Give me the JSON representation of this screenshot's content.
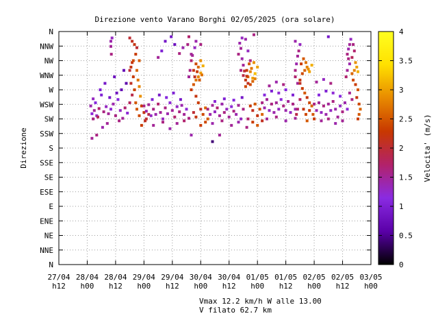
{
  "chart_data": {
    "type": "scatter",
    "title": "Direzione vento Varano Borghi 02/05/2025 (ora solare)",
    "ylabel": "Direzione",
    "colorbar_label": "Velocita' (m/s)",
    "x_ticks": [
      {
        "l1": "27/04",
        "l2": "h12"
      },
      {
        "l1": "28/04",
        "l2": "h00"
      },
      {
        "l1": "28/04",
        "l2": "h12"
      },
      {
        "l1": "29/04",
        "l2": "h00"
      },
      {
        "l1": "29/04",
        "l2": "h12"
      },
      {
        "l1": "30/04",
        "l2": "h00"
      },
      {
        "l1": "30/04",
        "l2": "h12"
      },
      {
        "l1": "01/05",
        "l2": "h00"
      },
      {
        "l1": "01/05",
        "l2": "h12"
      },
      {
        "l1": "02/05",
        "l2": "h00"
      },
      {
        "l1": "02/05",
        "l2": "h12"
      },
      {
        "l1": "03/05",
        "l2": "h00"
      }
    ],
    "y_ticks": [
      "N",
      "NNE",
      "NE",
      "ENE",
      "E",
      "ESE",
      "SE",
      "SSE",
      "S",
      "SSW",
      "SW",
      "WSW",
      "W",
      "WNW",
      "NW",
      "NNW",
      "N"
    ],
    "colorbar_ticks": [
      "0",
      "0.5",
      "1",
      "1.5",
      "2",
      "2.5",
      "3",
      "3.5",
      "4"
    ],
    "colorbar_range": [
      0,
      4
    ],
    "x_range_hours": [
      0,
      132
    ],
    "grid": true,
    "colors": {
      "scale": [
        "#000000",
        "#5a00a8",
        "#8a2be2",
        "#b2226a",
        "#c83800",
        "#e88a00",
        "#ffe000",
        "#ffff20"
      ]
    },
    "points": [
      [
        14.5,
        225,
        1.6
      ],
      [
        14,
        233,
        1.2
      ],
      [
        15,
        238,
        1.5
      ],
      [
        16,
        230,
        1.3
      ],
      [
        13.5,
        245,
        1.4
      ],
      [
        17,
        241,
        1.7
      ],
      [
        15.5,
        250,
        1.1
      ],
      [
        14.5,
        256,
        1.3
      ],
      [
        18,
        262,
        1.0
      ],
      [
        16.5,
        228,
        1.8
      ],
      [
        19,
        236,
        1.6
      ],
      [
        20,
        244,
        1.3
      ],
      [
        21,
        233,
        1.5
      ],
      [
        22,
        240,
        1.2
      ],
      [
        23,
        248,
        1.4
      ],
      [
        24,
        230,
        1.6
      ],
      [
        25,
        255,
        1.1
      ],
      [
        26,
        238,
        1.3
      ],
      [
        27,
        226,
        1.5
      ],
      [
        28,
        242,
        1.7
      ],
      [
        29,
        234,
        1.2
      ],
      [
        21.5,
        258,
        0.9
      ],
      [
        24.5,
        265,
        0.8
      ],
      [
        26.5,
        270,
        0.7
      ],
      [
        28.5,
        280,
        0.6
      ],
      [
        17.5,
        270,
        1.0
      ],
      [
        19.5,
        280,
        0.9
      ],
      [
        23.5,
        290,
        0.8
      ],
      [
        27.5,
        300,
        0.7
      ],
      [
        14,
        195,
        1.5
      ],
      [
        16,
        200,
        1.6
      ],
      [
        18.5,
        212,
        1.4
      ],
      [
        20.5,
        218,
        1.5
      ],
      [
        25.5,
        222,
        1.6
      ],
      [
        22,
        345,
        1.4
      ],
      [
        22.5,
        350,
        1.3
      ],
      [
        22,
        337,
        1.5
      ],
      [
        22.2,
        325,
        1.6
      ],
      [
        30,
        300,
        2.0
      ],
      [
        30.5,
        280,
        2.1
      ],
      [
        31,
        262,
        1.9
      ],
      [
        30,
        250,
        1.8
      ],
      [
        31,
        312,
        2.2
      ],
      [
        31.5,
        290,
        2.3
      ],
      [
        32,
        270,
        2.4
      ],
      [
        32.5,
        250,
        2.5
      ],
      [
        33,
        300,
        2.6
      ],
      [
        33.5,
        285,
        2.7
      ],
      [
        34,
        275,
        2.8
      ],
      [
        34.5,
        260,
        2.9
      ],
      [
        33,
        240,
        2.5
      ],
      [
        34,
        230,
        2.4
      ],
      [
        35,
        245,
        2.3
      ],
      [
        36,
        235,
        2.2
      ],
      [
        37,
        225,
        2.0
      ],
      [
        38,
        232,
        1.9
      ],
      [
        35,
        215,
        2.3
      ],
      [
        36.5,
        222,
        2.1
      ],
      [
        32,
        340,
        2.2
      ],
      [
        33,
        335,
        2.0
      ],
      [
        31,
        345,
        2.1
      ],
      [
        30,
        350,
        2.0
      ],
      [
        31.5,
        315,
        2.4
      ],
      [
        30.5,
        305,
        2.2
      ],
      [
        32.5,
        325,
        2.3
      ],
      [
        34,
        315,
        2.5
      ],
      [
        36,
        245,
        1.6
      ],
      [
        37,
        237,
        1.4
      ],
      [
        38,
        247,
        1.5
      ],
      [
        39,
        230,
        1.3
      ],
      [
        40,
        240,
        1.6
      ],
      [
        41,
        232,
        1.4
      ],
      [
        42,
        248,
        1.7
      ],
      [
        43,
        235,
        1.5
      ],
      [
        44,
        225,
        1.3
      ],
      [
        45,
        242,
        1.6
      ],
      [
        46,
        233,
        1.4
      ],
      [
        47,
        250,
        1.2
      ],
      [
        48,
        238,
        1.5
      ],
      [
        49,
        228,
        1.7
      ],
      [
        50,
        244,
        1.3
      ],
      [
        51,
        236,
        1.6
      ],
      [
        52,
        246,
        1.4
      ],
      [
        53,
        232,
        1.5
      ],
      [
        54,
        240,
        1.2
      ],
      [
        55,
        226,
        1.6
      ],
      [
        39.5,
        255,
        1.0
      ],
      [
        42.5,
        262,
        0.9
      ],
      [
        45.5,
        258,
        1.1
      ],
      [
        48.5,
        265,
        1.0
      ],
      [
        51.5,
        255,
        0.9
      ],
      [
        40,
        215,
        1.5
      ],
      [
        44,
        220,
        1.6
      ],
      [
        47,
        210,
        1.4
      ],
      [
        50,
        218,
        1.5
      ],
      [
        53,
        222,
        1.7
      ],
      [
        42,
        320,
        1.5
      ],
      [
        43.5,
        330,
        1.0
      ],
      [
        45,
        345,
        0.9
      ],
      [
        47.5,
        352,
        0.9
      ],
      [
        51,
        326,
        1.6
      ],
      [
        52.5,
        335,
        1.4
      ],
      [
        49,
        340,
        0.8
      ],
      [
        55,
        290,
        1.5
      ],
      [
        55.5,
        300,
        1.6
      ],
      [
        56,
        315,
        1.7
      ],
      [
        56.5,
        323,
        1.5
      ],
      [
        54.5,
        340,
        1.6
      ],
      [
        55,
        352,
        1.7
      ],
      [
        56,
        200,
        1.4
      ],
      [
        56,
        270,
        2.3
      ],
      [
        57,
        278,
        2.5
      ],
      [
        58,
        285,
        2.7
      ],
      [
        59,
        290,
        2.8
      ],
      [
        60,
        296,
        3.0
      ],
      [
        57,
        300,
        2.2
      ],
      [
        58,
        310,
        2.4
      ],
      [
        59,
        305,
        2.6
      ],
      [
        60,
        315,
        2.9
      ],
      [
        61,
        307,
        3.1
      ],
      [
        57.5,
        290,
        2.1
      ],
      [
        58.5,
        298,
        2.3
      ],
      [
        59.5,
        285,
        2.5
      ],
      [
        60.5,
        293,
        2.7
      ],
      [
        58,
        260,
        2.2
      ],
      [
        59,
        250,
        2.3
      ],
      [
        60,
        240,
        2.1
      ],
      [
        61,
        232,
        2.4
      ],
      [
        62,
        242,
        2.6
      ],
      [
        57,
        235,
        2.0
      ],
      [
        58,
        228,
        2.2
      ],
      [
        63,
        225,
        2.5
      ],
      [
        60,
        215,
        2.3
      ],
      [
        62,
        220,
        2.4
      ],
      [
        56,
        325,
        1.5
      ],
      [
        57.5,
        335,
        1.3
      ],
      [
        58,
        345,
        1.4
      ],
      [
        60,
        340,
        1.6
      ],
      [
        63,
        240,
        1.6
      ],
      [
        64,
        232,
        1.4
      ],
      [
        65,
        246,
        1.5
      ],
      [
        66,
        236,
        1.3
      ],
      [
        67,
        242,
        1.7
      ],
      [
        68,
        230,
        1.5
      ],
      [
        69,
        248,
        1.4
      ],
      [
        70,
        235,
        1.6
      ],
      [
        71,
        240,
        1.3
      ],
      [
        72,
        228,
        1.5
      ],
      [
        73,
        244,
        1.2
      ],
      [
        74,
        237,
        1.6
      ],
      [
        75,
        232,
        1.4
      ],
      [
        76,
        246,
        1.5
      ],
      [
        77,
        225,
        1.3
      ],
      [
        78,
        240,
        1.6
      ],
      [
        66,
        252,
        1.2
      ],
      [
        70,
        256,
        1.0
      ],
      [
        74,
        254,
        1.1
      ],
      [
        77.5,
        258,
        0.9
      ],
      [
        65,
        218,
        1.4
      ],
      [
        69,
        222,
        1.6
      ],
      [
        73,
        215,
        1.5
      ],
      [
        76,
        220,
        1.4
      ],
      [
        65,
        190,
        0.4
      ],
      [
        68,
        200,
        1.5
      ],
      [
        76,
        325,
        1.6
      ],
      [
        77,
        334,
        1.5
      ],
      [
        76.5,
        342,
        1.4
      ],
      [
        77.5,
        350,
        1.3
      ],
      [
        77,
        300,
        1.6
      ],
      [
        78,
        308,
        1.5
      ],
      [
        77.5,
        318,
        1.4
      ],
      [
        79,
        275,
        2.4
      ],
      [
        80,
        290,
        2.6
      ],
      [
        81,
        298,
        2.8
      ],
      [
        82,
        288,
        3.0
      ],
      [
        83,
        295,
        3.2
      ],
      [
        79.5,
        300,
        2.3
      ],
      [
        80.5,
        310,
        2.5
      ],
      [
        81.5,
        303,
        2.7
      ],
      [
        82.5,
        312,
        2.9
      ],
      [
        84,
        305,
        3.0
      ],
      [
        79,
        285,
        2.2
      ],
      [
        80,
        280,
        2.1
      ],
      [
        81,
        278,
        2.4
      ],
      [
        82,
        283,
        2.6
      ],
      [
        83,
        287,
        2.8
      ],
      [
        78,
        292,
        1.9
      ],
      [
        78.5,
        299,
        2.0
      ],
      [
        79.5,
        291,
        2.2
      ],
      [
        81,
        245,
        2.3
      ],
      [
        82,
        238,
        2.1
      ],
      [
        83,
        248,
        2.5
      ],
      [
        84,
        230,
        2.2
      ],
      [
        85,
        240,
        2.4
      ],
      [
        86,
        232,
        2.6
      ],
      [
        80,
        225,
        2.2
      ],
      [
        82,
        220,
        2.3
      ],
      [
        84,
        215,
        2.5
      ],
      [
        86,
        222,
        2.1
      ],
      [
        80,
        225,
        1.7
      ],
      [
        79.5,
        212,
        1.6
      ],
      [
        81,
        315,
        1.6
      ],
      [
        80,
        330,
        1.3
      ],
      [
        79,
        348,
        1.4
      ],
      [
        82.5,
        355,
        1.6
      ],
      [
        86,
        250,
        1.6
      ],
      [
        87,
        242,
        1.4
      ],
      [
        88,
        255,
        1.5
      ],
      [
        89,
        238,
        1.3
      ],
      [
        90,
        248,
        1.6
      ],
      [
        91,
        235,
        1.4
      ],
      [
        92,
        250,
        1.5
      ],
      [
        93,
        240,
        1.3
      ],
      [
        94,
        255,
        1.2
      ],
      [
        95,
        245,
        1.6
      ],
      [
        96,
        238,
        1.4
      ],
      [
        97,
        252,
        1.5
      ],
      [
        98,
        235,
        1.3
      ],
      [
        99,
        248,
        1.6
      ],
      [
        100,
        240,
        1.4
      ],
      [
        87,
        262,
        1.1
      ],
      [
        90,
        268,
        1.0
      ],
      [
        93,
        265,
        1.2
      ],
      [
        96,
        270,
        1.1
      ],
      [
        99,
        262,
        1.0
      ],
      [
        88,
        225,
        1.5
      ],
      [
        92,
        228,
        1.6
      ],
      [
        96,
        222,
        1.4
      ],
      [
        100,
        226,
        1.5
      ],
      [
        89,
        276,
        1.5
      ],
      [
        92,
        282,
        1.4
      ],
      [
        95,
        278,
        1.6
      ],
      [
        100,
        300,
        1.6
      ],
      [
        100.5,
        310,
        1.4
      ],
      [
        101,
        322,
        1.5
      ],
      [
        101.5,
        330,
        1.6
      ],
      [
        100,
        290,
        1.7
      ],
      [
        101,
        280,
        1.5
      ],
      [
        102,
        340,
        1.3
      ],
      [
        100,
        345,
        1.4
      ],
      [
        102,
        255,
        1.8
      ],
      [
        101,
        240,
        1.7
      ],
      [
        100.5,
        232,
        1.9
      ],
      [
        102,
        285,
        2.2
      ],
      [
        103,
        295,
        2.4
      ],
      [
        104,
        300,
        2.6
      ],
      [
        105,
        305,
        2.8
      ],
      [
        106,
        298,
        3.0
      ],
      [
        102.5,
        310,
        2.3
      ],
      [
        103.5,
        318,
        2.5
      ],
      [
        104.5,
        312,
        2.7
      ],
      [
        105.5,
        302,
        2.9
      ],
      [
        107,
        308,
        3.1
      ],
      [
        102,
        280,
        2.1
      ],
      [
        103,
        272,
        2.3
      ],
      [
        104,
        265,
        2.5
      ],
      [
        105,
        258,
        2.2
      ],
      [
        106,
        250,
        2.4
      ],
      [
        107,
        245,
        2.6
      ],
      [
        106,
        238,
        2.3
      ],
      [
        107.5,
        232,
        2.5
      ],
      [
        103.5,
        240,
        2.2
      ],
      [
        104.5,
        232,
        2.4
      ],
      [
        108,
        225,
        2.3
      ],
      [
        105,
        222,
        2.5
      ],
      [
        108,
        248,
        1.6
      ],
      [
        109,
        238,
        1.4
      ],
      [
        110,
        250,
        1.5
      ],
      [
        111,
        235,
        1.3
      ],
      [
        112,
        245,
        1.6
      ],
      [
        113,
        232,
        1.4
      ],
      [
        114,
        248,
        1.5
      ],
      [
        115,
        238,
        1.3
      ],
      [
        116,
        252,
        1.6
      ],
      [
        117,
        240,
        1.4
      ],
      [
        118,
        228,
        1.5
      ],
      [
        119,
        245,
        1.3
      ],
      [
        120,
        236,
        1.6
      ],
      [
        121,
        250,
        1.4
      ],
      [
        122,
        240,
        1.2
      ],
      [
        110,
        262,
        1.1
      ],
      [
        113,
        268,
        1.0
      ],
      [
        116,
        265,
        1.2
      ],
      [
        119,
        260,
        1.1
      ],
      [
        111,
        222,
        1.5
      ],
      [
        114,
        225,
        1.6
      ],
      [
        117,
        218,
        1.4
      ],
      [
        120,
        222,
        1.5
      ],
      [
        109,
        282,
        1.5
      ],
      [
        112,
        286,
        1.3
      ],
      [
        115,
        280,
        1.6
      ],
      [
        114,
        352,
        0.9
      ],
      [
        122,
        325,
        1.6
      ],
      [
        122.5,
        333,
        1.4
      ],
      [
        123,
        340,
        1.5
      ],
      [
        123.5,
        348,
        1.3
      ],
      [
        122,
        300,
        1.5
      ],
      [
        123,
        310,
        1.4
      ],
      [
        122.5,
        318,
        1.6
      ],
      [
        121.5,
        290,
        1.7
      ],
      [
        123,
        265,
        1.5
      ],
      [
        124,
        255,
        1.6
      ],
      [
        124,
        295,
        2.6
      ],
      [
        125,
        300,
        2.8
      ],
      [
        126,
        305,
        3.0
      ],
      [
        125.5,
        312,
        2.9
      ],
      [
        126.5,
        298,
        3.1
      ],
      [
        124.5,
        285,
        2.4
      ],
      [
        125.5,
        278,
        2.3
      ],
      [
        126.5,
        270,
        2.5
      ],
      [
        126,
        258,
        2.2
      ],
      [
        127,
        248,
        2.4
      ],
      [
        127.5,
        240,
        2.6
      ],
      [
        127,
        232,
        2.5
      ],
      [
        126.5,
        225,
        2.3
      ],
      [
        124,
        320,
        1.8
      ],
      [
        125,
        330,
        1.7
      ],
      [
        124.5,
        340,
        1.6
      ]
    ]
  }
}
